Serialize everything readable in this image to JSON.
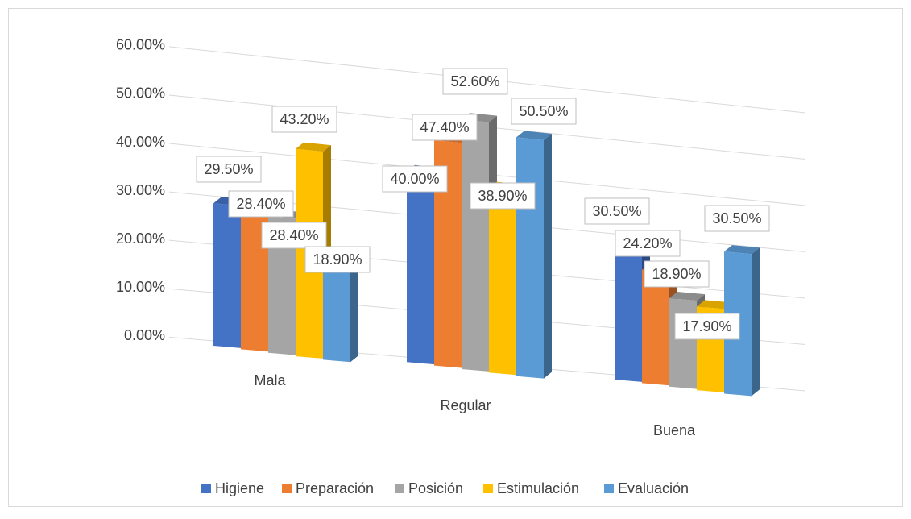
{
  "chart_data": {
    "type": "bar3d",
    "categories": [
      "Mala",
      "Regular",
      "Buena"
    ],
    "ylim": [
      0,
      60
    ],
    "yticks": [
      {
        "value": 0,
        "label": "0.00%"
      },
      {
        "value": 10,
        "label": "10.00%"
      },
      {
        "value": 20,
        "label": "20.00%"
      },
      {
        "value": 30,
        "label": "30.00%"
      },
      {
        "value": 40,
        "label": "40.00%"
      },
      {
        "value": 50,
        "label": "50.00%"
      },
      {
        "value": 60,
        "label": "60.00%"
      }
    ],
    "grid": true,
    "legend": "bottom",
    "series": [
      {
        "name": "Higiene",
        "color": "#4472c4",
        "values": [
          29.5,
          40.0,
          30.5
        ],
        "value_labels": [
          "29.50%",
          "40.00%",
          "30.50%"
        ]
      },
      {
        "name": "Preparación",
        "color": "#ed7d31",
        "values": [
          28.4,
          47.4,
          24.2
        ],
        "value_labels": [
          "28.40%",
          "47.40%",
          "24.20%"
        ]
      },
      {
        "name": "Posición",
        "color": "#a5a5a5",
        "values": [
          28.4,
          52.6,
          18.9
        ],
        "value_labels": [
          "28.40%",
          "52.60%",
          "18.90%"
        ]
      },
      {
        "name": "Estimulación",
        "color": "#ffc000",
        "values": [
          43.2,
          38.9,
          17.9
        ],
        "value_labels": [
          "43.20%",
          "38.90%",
          "17.90%"
        ]
      },
      {
        "name": "Evaluación",
        "color": "#5b9bd5",
        "values": [
          18.9,
          50.5,
          30.5
        ],
        "value_labels": [
          "18.90%",
          "50.50%",
          "30.50%"
        ]
      }
    ]
  }
}
